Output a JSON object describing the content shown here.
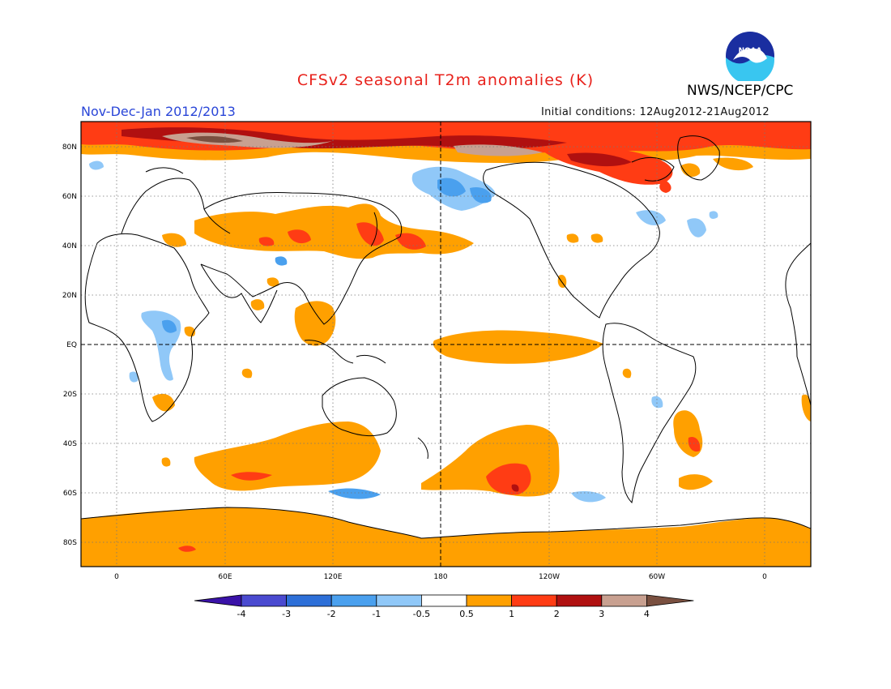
{
  "header": {
    "title": "CFSv2 seasonal T2m anomalies (K)",
    "org": "NWS/NCEP/CPC",
    "period": "Nov-Dec-Jan 2012/2013",
    "initial_conditions": "Initial conditions: 12Aug2012-21Aug2012",
    "logo_text": "NOAA"
  },
  "axes": {
    "lat_labels": [
      "80N",
      "60N",
      "40N",
      "20N",
      "EQ",
      "20S",
      "40S",
      "60S",
      "80S"
    ],
    "lon_labels": [
      "0",
      "60E",
      "120E",
      "180",
      "120W",
      "60W",
      "0"
    ]
  },
  "legend": {
    "labels": [
      "-4",
      "-3",
      "-2",
      "-1",
      "-0.5",
      "0.5",
      "1",
      "2",
      "3",
      "4"
    ],
    "colors": [
      "#3a12a8",
      "#4a4ad0",
      "#2d6fd8",
      "#4aa0ee",
      "#90c8f8",
      "#ffffff",
      "#ffa000",
      "#ff3c14",
      "#b01010",
      "#c8a090",
      "#7a5040"
    ]
  },
  "colors": {
    "title": "#e8221c",
    "period": "#2a46d8",
    "coast": "#000000"
  }
}
